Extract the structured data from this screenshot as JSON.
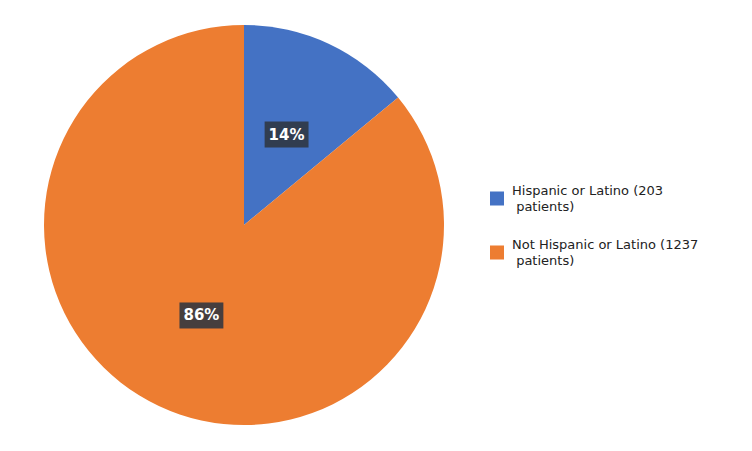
{
  "chart_data": {
    "type": "pie",
    "categories": [
      "Hispanic or Latino (203\n patients)",
      "Not Hispanic or Latino (1237\n patients)"
    ],
    "values": [
      14,
      86
    ],
    "value_labels": [
      "14%",
      "86%"
    ],
    "colors": [
      "#4472C4",
      "#ED7D31"
    ],
    "data_labels": true,
    "legend": "right"
  }
}
